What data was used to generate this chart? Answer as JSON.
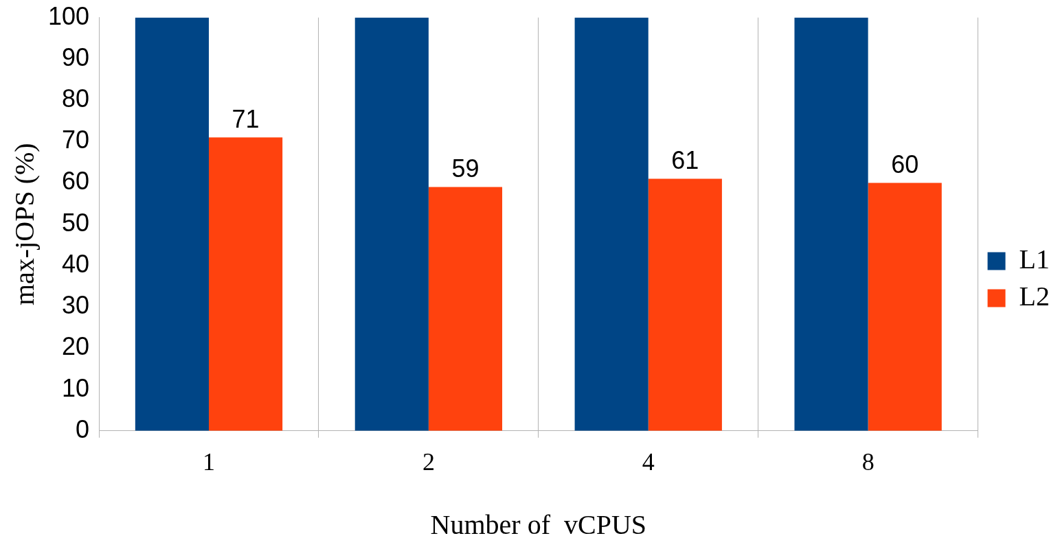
{
  "chart_data": {
    "type": "bar",
    "xlabel": "Number of  vCPUS",
    "ylabel": "max-jOPS (%)",
    "categories": [
      "1",
      "2",
      "4",
      "8"
    ],
    "series": [
      {
        "name": "L1",
        "color": "#004586",
        "values": [
          100,
          100,
          100,
          100
        ]
      },
      {
        "name": "L2",
        "color": "#ff420e",
        "values": [
          71,
          59,
          61,
          60
        ],
        "value_labels": [
          "71",
          "59",
          "61",
          "60"
        ]
      }
    ],
    "ylim": [
      0,
      100
    ],
    "yticks": [
      0,
      10,
      20,
      30,
      40,
      50,
      60,
      70,
      80,
      90,
      100
    ],
    "grid": "x",
    "legend": "right"
  }
}
